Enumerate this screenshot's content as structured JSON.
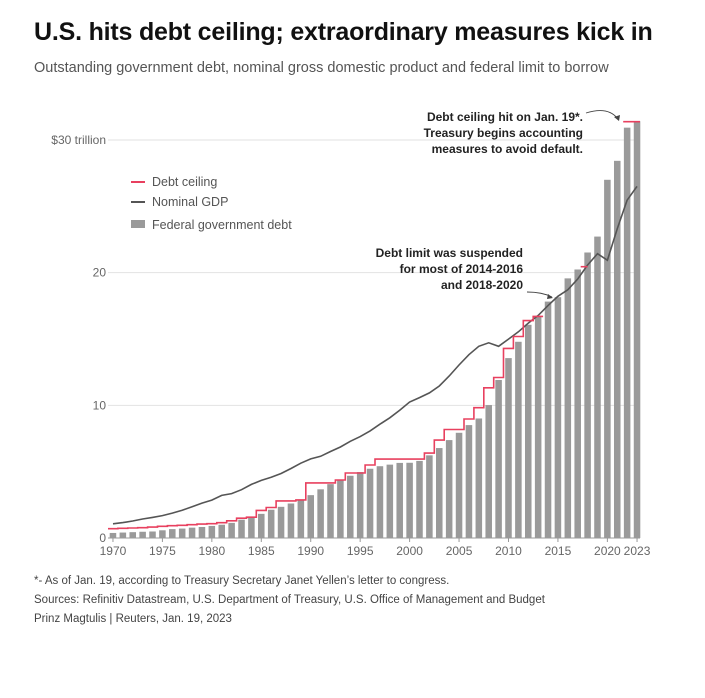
{
  "header": {
    "title": "U.S. hits debt ceiling; extraordinary measures kick in",
    "subtitle": "Outstanding government debt, nominal gross domestic product and federal limit to borrow"
  },
  "chart_data": {
    "type": "bar",
    "title": "",
    "xlabel": "",
    "ylabel": "",
    "ylim": [
      0,
      31.4
    ],
    "y_ticks": [
      {
        "value": 0,
        "label": "0"
      },
      {
        "value": 10,
        "label": "10"
      },
      {
        "value": 20,
        "label": "20"
      },
      {
        "value": 30,
        "label": "$30 trillion"
      }
    ],
    "x_ticks": [
      {
        "value": 1970,
        "label": "1970"
      },
      {
        "value": 1975,
        "label": "1975"
      },
      {
        "value": 1980,
        "label": "1980"
      },
      {
        "value": 1985,
        "label": "1985"
      },
      {
        "value": 1990,
        "label": "1990"
      },
      {
        "value": 1995,
        "label": "1995"
      },
      {
        "value": 2000,
        "label": "2000"
      },
      {
        "value": 2005,
        "label": "2005"
      },
      {
        "value": 2010,
        "label": "2010"
      },
      {
        "value": 2015,
        "label": "2015"
      },
      {
        "value": 2020,
        "label": "2020"
      },
      {
        "value": 2023,
        "label": "2023"
      }
    ],
    "grid": true,
    "legend_position": "top-left",
    "legend": [
      {
        "label": "Debt ceiling",
        "color": "#e8405f",
        "kind": "line"
      },
      {
        "label": "Nominal GDP",
        "color": "#555555",
        "kind": "line"
      },
      {
        "label": "Federal government debt",
        "color": "#9a9a9a",
        "kind": "bar"
      }
    ],
    "series": [
      {
        "name": "Federal government debt",
        "kind": "bar",
        "color": "#9a9a9a",
        "x": [
          1970,
          1971,
          1972,
          1973,
          1974,
          1975,
          1976,
          1977,
          1978,
          1979,
          1980,
          1981,
          1982,
          1983,
          1984,
          1985,
          1986,
          1987,
          1988,
          1989,
          1990,
          1991,
          1992,
          1993,
          1994,
          1995,
          1996,
          1997,
          1998,
          1999,
          2000,
          2001,
          2002,
          2003,
          2004,
          2005,
          2006,
          2007,
          2008,
          2009,
          2010,
          2011,
          2012,
          2013,
          2014,
          2015,
          2016,
          2017,
          2018,
          2019,
          2020,
          2021,
          2022,
          2023
        ],
        "values": [
          0.38,
          0.41,
          0.44,
          0.47,
          0.49,
          0.58,
          0.67,
          0.71,
          0.78,
          0.83,
          0.91,
          1.0,
          1.14,
          1.38,
          1.57,
          1.82,
          2.13,
          2.35,
          2.6,
          2.86,
          3.23,
          3.67,
          4.06,
          4.41,
          4.69,
          4.97,
          5.22,
          5.41,
          5.53,
          5.66,
          5.67,
          5.81,
          6.23,
          6.78,
          7.38,
          7.93,
          8.51,
          9.01,
          10.02,
          11.91,
          13.56,
          14.79,
          16.07,
          16.74,
          17.82,
          18.15,
          19.57,
          20.24,
          21.52,
          22.72,
          27.0,
          28.43,
          30.93,
          31.42
        ]
      },
      {
        "name": "Nominal GDP",
        "kind": "line",
        "color": "#555555",
        "x": [
          1970,
          1971,
          1972,
          1973,
          1974,
          1975,
          1976,
          1977,
          1978,
          1979,
          1980,
          1981,
          1982,
          1983,
          1984,
          1985,
          1986,
          1987,
          1988,
          1989,
          1990,
          1991,
          1992,
          1993,
          1994,
          1995,
          1996,
          1997,
          1998,
          1999,
          2000,
          2001,
          2002,
          2003,
          2004,
          2005,
          2006,
          2007,
          2008,
          2009,
          2010,
          2011,
          2012,
          2013,
          2014,
          2015,
          2016,
          2017,
          2018,
          2019,
          2020,
          2021,
          2022,
          2023
        ],
        "values": [
          1.07,
          1.16,
          1.28,
          1.43,
          1.55,
          1.69,
          1.88,
          2.09,
          2.36,
          2.63,
          2.86,
          3.21,
          3.35,
          3.64,
          4.04,
          4.34,
          4.58,
          4.86,
          5.24,
          5.64,
          5.96,
          6.16,
          6.52,
          6.86,
          7.29,
          7.64,
          8.07,
          8.58,
          9.06,
          9.63,
          10.25,
          10.58,
          10.94,
          11.46,
          12.21,
          13.04,
          13.82,
          14.45,
          14.71,
          14.45,
          14.99,
          15.54,
          16.2,
          16.78,
          17.52,
          18.22,
          18.71,
          19.52,
          20.58,
          21.43,
          20.94,
          23.32,
          25.46,
          26.5
        ]
      },
      {
        "name": "Debt ceiling",
        "kind": "step",
        "color": "#e8405f",
        "x": [
          1970,
          1971,
          1972,
          1973,
          1974,
          1975,
          1976,
          1977,
          1978,
          1979,
          1980,
          1981,
          1982,
          1983,
          1984,
          1985,
          1986,
          1987,
          1988,
          1989,
          1990,
          1991,
          1992,
          1993,
          1994,
          1995,
          1996,
          1997,
          1998,
          1999,
          2000,
          2001,
          2002,
          2003,
          2004,
          2005,
          2006,
          2007,
          2008,
          2009,
          2010,
          2011,
          2012,
          2013
        ],
        "values": [
          0.7,
          0.73,
          0.75,
          0.78,
          0.82,
          0.88,
          0.93,
          0.96,
          1.0,
          1.05,
          1.08,
          1.15,
          1.3,
          1.49,
          1.57,
          2.08,
          2.3,
          2.8,
          2.8,
          2.87,
          4.15,
          4.15,
          4.15,
          4.37,
          4.9,
          4.9,
          5.5,
          5.95,
          5.95,
          5.95,
          5.95,
          5.95,
          6.4,
          7.38,
          8.18,
          8.18,
          8.97,
          9.82,
          11.32,
          12.1,
          14.29,
          15.19,
          16.39,
          16.7
        ]
      },
      {
        "name": "Debt ceiling",
        "kind": "step",
        "color": "#e8405f",
        "x": [
          2017.3,
          2018.0
        ],
        "values": [
          20.45,
          20.45
        ]
      },
      {
        "name": "Debt ceiling",
        "kind": "step",
        "color": "#e8405f",
        "x": [
          2021.6,
          2023.3
        ],
        "values": [
          31.38,
          31.38
        ]
      }
    ],
    "annotations": [
      {
        "id": "ceiling-hit",
        "lines": [
          "Debt ceiling hit on Jan. 19*.",
          "Treasury begins accounting",
          "measures to avoid default."
        ]
      },
      {
        "id": "suspended",
        "lines": [
          "Debt limit was suspended",
          "for most of 2014-2016",
          "and 2018-2020"
        ]
      }
    ]
  },
  "footer": {
    "note": "*- As of Jan. 19, according to Treasury Secretary Janet Yellen’s letter to congress.",
    "sources": "Sources: Refinitiv Datastream, U.S. Department of Treasury, U.S. Office of Management and Budget",
    "credit": "Prinz Magtulis  |  Reuters, Jan. 19, 2023"
  }
}
